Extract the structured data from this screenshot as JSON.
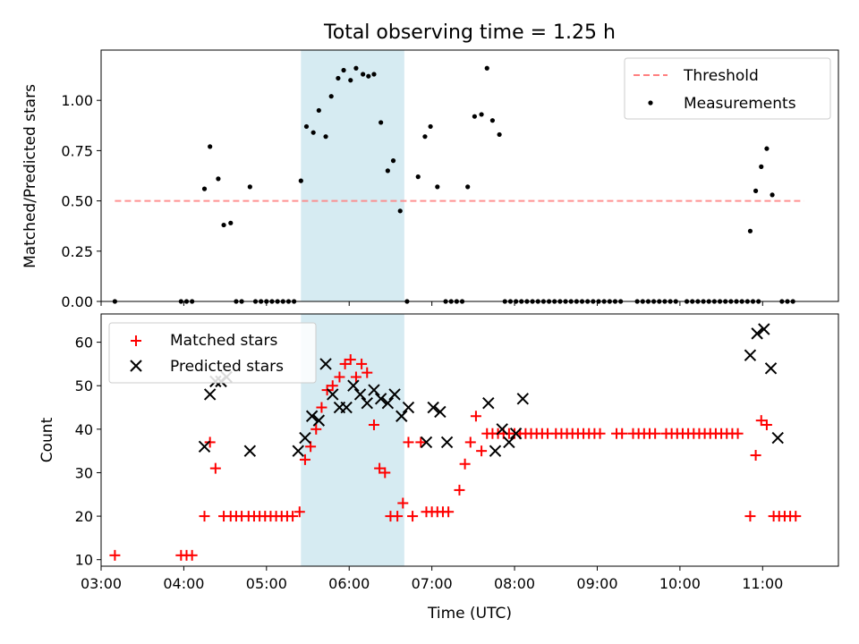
{
  "chart_data": [
    {
      "type": "scatter",
      "title": "Total observing time = 1.25 h",
      "xlabel": "",
      "ylabel": "Matched/Predicted stars",
      "xlim": [
        "03:00",
        "11:55"
      ],
      "ylim": [
        0,
        1.25
      ],
      "yticks": [
        0.0,
        0.25,
        0.5,
        0.75,
        1.0
      ],
      "ytick_labels": [
        "0.00",
        "0.25",
        "0.50",
        "0.75",
        "1.00"
      ],
      "legend": {
        "placement": "top-right",
        "entries": [
          "Threshold",
          "Measurements"
        ]
      },
      "highlight_span": {
        "start": "05:25",
        "end": "06:40",
        "color": "#add8e6"
      },
      "threshold": {
        "name": "Threshold",
        "value": 0.5,
        "x_start": "03:10",
        "x_end": "11:30",
        "color": "#ff7f7f",
        "style": "dashed"
      },
      "series": [
        {
          "name": "Measurements",
          "color": "#000000",
          "points": [
            [
              "03:10",
              0
            ],
            [
              "03:58",
              0
            ],
            [
              "04:02",
              0
            ],
            [
              "04:06",
              0
            ],
            [
              "04:15",
              0.56
            ],
            [
              "04:19",
              0.77
            ],
            [
              "04:25",
              0.61
            ],
            [
              "04:29",
              0.38
            ],
            [
              "04:34",
              0.39
            ],
            [
              "04:38",
              0
            ],
            [
              "04:42",
              0
            ],
            [
              "04:48",
              0.57
            ],
            [
              "04:52",
              0
            ],
            [
              "04:56",
              0
            ],
            [
              "05:00",
              0
            ],
            [
              "05:04",
              0
            ],
            [
              "05:08",
              0
            ],
            [
              "05:12",
              0
            ],
            [
              "05:16",
              0
            ],
            [
              "05:20",
              0
            ],
            [
              "05:25",
              0.6
            ],
            [
              "05:29",
              0.87
            ],
            [
              "05:34",
              0.84
            ],
            [
              "05:38",
              0.95
            ],
            [
              "05:43",
              0.82
            ],
            [
              "05:47",
              1.02
            ],
            [
              "05:52",
              1.11
            ],
            [
              "05:56",
              1.15
            ],
            [
              "06:01",
              1.1
            ],
            [
              "06:05",
              1.16
            ],
            [
              "06:10",
              1.13
            ],
            [
              "06:14",
              1.12
            ],
            [
              "06:18",
              1.13
            ],
            [
              "06:23",
              0.89
            ],
            [
              "06:28",
              0.65
            ],
            [
              "06:32",
              0.7
            ],
            [
              "06:37",
              0.45
            ],
            [
              "06:42",
              0
            ],
            [
              "06:50",
              0.62
            ],
            [
              "06:55",
              0.82
            ],
            [
              "06:59",
              0.87
            ],
            [
              "07:04",
              0.57
            ],
            [
              "07:10",
              0
            ],
            [
              "07:14",
              0
            ],
            [
              "07:18",
              0
            ],
            [
              "07:22",
              0
            ],
            [
              "07:26",
              0.57
            ],
            [
              "07:31",
              0.92
            ],
            [
              "07:36",
              0.93
            ],
            [
              "07:40",
              1.16
            ],
            [
              "07:44",
              0.9
            ],
            [
              "07:49",
              0.83
            ],
            [
              "07:53",
              0
            ],
            [
              "07:57",
              0
            ],
            [
              "08:01",
              0
            ],
            [
              "08:05",
              0
            ],
            [
              "08:09",
              0
            ],
            [
              "08:13",
              0
            ],
            [
              "08:17",
              0
            ],
            [
              "08:21",
              0
            ],
            [
              "08:25",
              0
            ],
            [
              "08:29",
              0
            ],
            [
              "08:33",
              0
            ],
            [
              "08:37",
              0
            ],
            [
              "08:41",
              0
            ],
            [
              "08:45",
              0
            ],
            [
              "08:49",
              0
            ],
            [
              "08:53",
              0
            ],
            [
              "08:57",
              0
            ],
            [
              "09:01",
              0
            ],
            [
              "09:05",
              0
            ],
            [
              "09:09",
              0
            ],
            [
              "09:13",
              0
            ],
            [
              "09:17",
              0
            ],
            [
              "09:29",
              0
            ],
            [
              "09:33",
              0
            ],
            [
              "09:37",
              0
            ],
            [
              "09:41",
              0
            ],
            [
              "09:45",
              0
            ],
            [
              "09:49",
              0
            ],
            [
              "09:53",
              0
            ],
            [
              "09:57",
              0
            ],
            [
              "10:05",
              0
            ],
            [
              "10:09",
              0
            ],
            [
              "10:13",
              0
            ],
            [
              "10:17",
              0
            ],
            [
              "10:21",
              0
            ],
            [
              "10:25",
              0
            ],
            [
              "10:29",
              0
            ],
            [
              "10:33",
              0
            ],
            [
              "10:37",
              0
            ],
            [
              "10:41",
              0
            ],
            [
              "10:45",
              0
            ],
            [
              "10:49",
              0
            ],
            [
              "10:53",
              0
            ],
            [
              "10:57",
              0
            ],
            [
              "10:51",
              0.35
            ],
            [
              "10:55",
              0.55
            ],
            [
              "10:59",
              0.67
            ],
            [
              "11:03",
              0.76
            ],
            [
              "11:07",
              0.53
            ],
            [
              "11:14",
              0
            ],
            [
              "11:18",
              0
            ],
            [
              "11:22",
              0
            ]
          ]
        }
      ]
    },
    {
      "type": "scatter",
      "title": "",
      "xlabel": "Time (UTC)",
      "ylabel": "Count",
      "xlim": [
        "03:00",
        "11:55"
      ],
      "ylim": [
        8.5,
        66.5
      ],
      "yticks": [
        10,
        20,
        30,
        40,
        50,
        60
      ],
      "xticks": [
        "03:00",
        "04:00",
        "05:00",
        "06:00",
        "07:00",
        "08:00",
        "09:00",
        "10:00",
        "11:00"
      ],
      "legend": {
        "placement": "top-left",
        "entries": [
          "Matched stars",
          "Predicted stars"
        ]
      },
      "highlight_span": {
        "start": "05:25",
        "end": "06:40",
        "color": "#add8e6"
      },
      "series": [
        {
          "name": "Matched stars",
          "marker": "+",
          "color": "#ff0000",
          "points": [
            [
              "03:10",
              11
            ],
            [
              "03:58",
              11
            ],
            [
              "04:02",
              11
            ],
            [
              "04:06",
              11
            ],
            [
              "04:15",
              20
            ],
            [
              "04:19",
              37
            ],
            [
              "04:23",
              31
            ],
            [
              "04:29",
              20
            ],
            [
              "04:34",
              20
            ],
            [
              "04:38",
              20
            ],
            [
              "04:42",
              20
            ],
            [
              "04:47",
              20
            ],
            [
              "04:51",
              20
            ],
            [
              "04:55",
              20
            ],
            [
              "04:59",
              20
            ],
            [
              "05:03",
              20
            ],
            [
              "05:07",
              20
            ],
            [
              "05:11",
              20
            ],
            [
              "05:15",
              20
            ],
            [
              "05:19",
              20
            ],
            [
              "05:24",
              21
            ],
            [
              "05:28",
              33
            ],
            [
              "05:32",
              36
            ],
            [
              "05:36",
              40
            ],
            [
              "05:40",
              45
            ],
            [
              "05:44",
              49
            ],
            [
              "05:48",
              50
            ],
            [
              "05:53",
              52
            ],
            [
              "05:57",
              55
            ],
            [
              "06:01",
              56
            ],
            [
              "06:05",
              52
            ],
            [
              "06:09",
              55
            ],
            [
              "06:13",
              53
            ],
            [
              "06:18",
              41
            ],
            [
              "06:22",
              31
            ],
            [
              "06:26",
              30
            ],
            [
              "06:30",
              20
            ],
            [
              "06:35",
              20
            ],
            [
              "06:39",
              23
            ],
            [
              "06:43",
              37
            ],
            [
              "06:46",
              20
            ],
            [
              "06:52",
              37
            ],
            [
              "06:56",
              21
            ],
            [
              "07:00",
              21
            ],
            [
              "07:04",
              21
            ],
            [
              "07:08",
              21
            ],
            [
              "07:12",
              21
            ],
            [
              "07:20",
              26
            ],
            [
              "07:24",
              32
            ],
            [
              "07:28",
              37
            ],
            [
              "07:32",
              43
            ],
            [
              "07:36",
              35
            ],
            [
              "07:40",
              39
            ],
            [
              "07:44",
              39
            ],
            [
              "07:48",
              39
            ],
            [
              "07:52",
              39
            ],
            [
              "07:56",
              39
            ],
            [
              "08:00",
              39
            ],
            [
              "08:04",
              39
            ],
            [
              "08:08",
              39
            ],
            [
              "08:12",
              39
            ],
            [
              "08:16",
              39
            ],
            [
              "08:20",
              39
            ],
            [
              "08:24",
              39
            ],
            [
              "08:30",
              39
            ],
            [
              "08:34",
              39
            ],
            [
              "08:38",
              39
            ],
            [
              "08:42",
              39
            ],
            [
              "08:46",
              39
            ],
            [
              "08:50",
              39
            ],
            [
              "08:54",
              39
            ],
            [
              "08:58",
              39
            ],
            [
              "09:02",
              39
            ],
            [
              "09:14",
              39
            ],
            [
              "09:18",
              39
            ],
            [
              "09:26",
              39
            ],
            [
              "09:30",
              39
            ],
            [
              "09:34",
              39
            ],
            [
              "09:38",
              39
            ],
            [
              "09:42",
              39
            ],
            [
              "09:50",
              39
            ],
            [
              "09:54",
              39
            ],
            [
              "09:58",
              39
            ],
            [
              "10:02",
              39
            ],
            [
              "10:06",
              39
            ],
            [
              "10:10",
              39
            ],
            [
              "10:14",
              39
            ],
            [
              "10:18",
              39
            ],
            [
              "10:22",
              39
            ],
            [
              "10:26",
              39
            ],
            [
              "10:30",
              39
            ],
            [
              "10:34",
              39
            ],
            [
              "10:38",
              39
            ],
            [
              "10:42",
              39
            ],
            [
              "10:51",
              20
            ],
            [
              "10:55",
              34
            ],
            [
              "10:59",
              42
            ],
            [
              "11:03",
              41
            ],
            [
              "11:08",
              20
            ],
            [
              "11:12",
              20
            ],
            [
              "11:16",
              20
            ],
            [
              "11:20",
              20
            ],
            [
              "11:24",
              20
            ]
          ]
        },
        {
          "name": "Predicted stars",
          "marker": "x",
          "color": "#000000",
          "points": [
            [
              "04:15",
              36
            ],
            [
              "04:19",
              48
            ],
            [
              "04:23",
              51
            ],
            [
              "04:27",
              51
            ],
            [
              "04:31",
              52
            ],
            [
              "04:48",
              35
            ],
            [
              "05:23",
              35
            ],
            [
              "05:28",
              38
            ],
            [
              "05:33",
              43
            ],
            [
              "05:38",
              42
            ],
            [
              "05:43",
              55
            ],
            [
              "05:48",
              48
            ],
            [
              "05:53",
              45
            ],
            [
              "05:58",
              45
            ],
            [
              "06:03",
              50
            ],
            [
              "06:08",
              48
            ],
            [
              "06:13",
              46
            ],
            [
              "06:18",
              49
            ],
            [
              "06:23",
              47
            ],
            [
              "06:28",
              46
            ],
            [
              "06:33",
              48
            ],
            [
              "06:38",
              43
            ],
            [
              "06:43",
              45
            ],
            [
              "06:56",
              37
            ],
            [
              "07:01",
              45
            ],
            [
              "07:06",
              44
            ],
            [
              "07:11",
              37
            ],
            [
              "07:41",
              46
            ],
            [
              "07:46",
              35
            ],
            [
              "07:51",
              40
            ],
            [
              "07:56",
              37
            ],
            [
              "08:01",
              39
            ],
            [
              "08:06",
              47
            ],
            [
              "10:51",
              57
            ],
            [
              "10:56",
              62
            ],
            [
              "11:01",
              63
            ],
            [
              "11:06",
              54
            ],
            [
              "11:11",
              38
            ]
          ]
        }
      ]
    }
  ]
}
